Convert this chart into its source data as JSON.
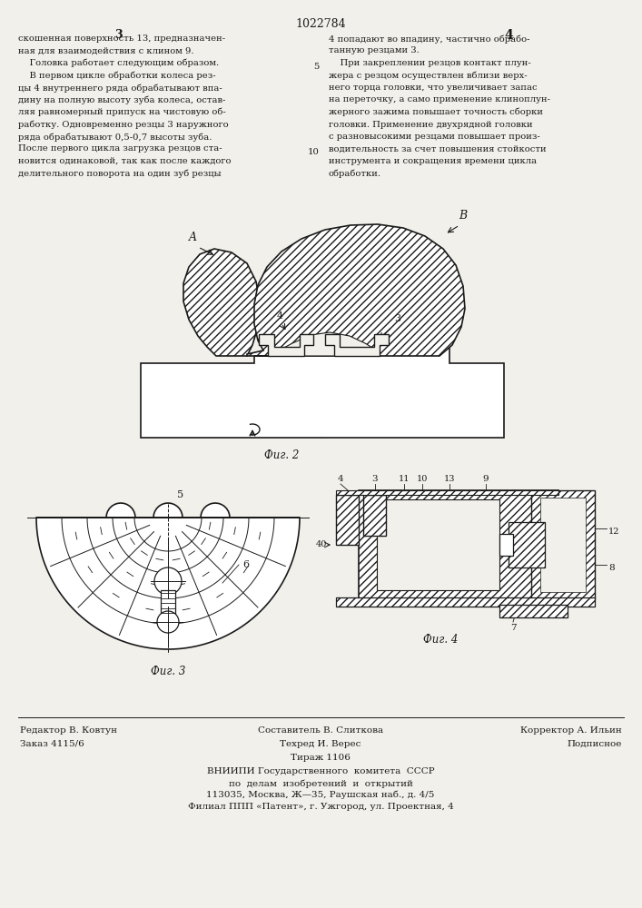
{
  "page_number": "1022784",
  "col_left": "3",
  "col_right": "4",
  "text_left": [
    "скошенная поверхность 13, предназначен-",
    "ная для взаимодействия с клином 9.",
    "    Головка работает следующим образом.",
    "    В первом цикле обработки колеса рез-",
    "цы 4 внутреннего ряда обрабатывают впа-",
    "дину на полную высоту зуба колеса, остав-",
    "ляя равномерный припуск на чистовую об-",
    "работку. Одновременно резцы 3 наружного",
    "ряда обрабатывают 0,5-0,7 высоты зуба.",
    "После первого цикла загрузка резцов ста-",
    "новится одинаковой, так как после каждого",
    "делительного поворота на один зуб резцы"
  ],
  "text_right": [
    "4 попадают во впадину, частично обрабо-",
    "танную резцами 3.",
    "    При закреплении резцов контакт плун-",
    "жера с резцом осуществлен вблизи верх-",
    "него торца головки, что увеличивает запас",
    "на переточку, а само применение клиноплун-",
    "жерного зажима повышает точность сборки",
    "головки. Применение двухрядной головки",
    "с разновысокими резцами повышает произ-",
    "водительность за счет повышения стойкости",
    "инструмента и сокращения времени цикла",
    "обработки."
  ],
  "footer_left1": "Редактор В. Ковтун",
  "footer_left2": "Заказ 4115/6",
  "footer_center1": "Составитель В. Слиткова",
  "footer_center2": "Техред И. Верес",
  "footer_center3": "Тираж 1106",
  "footer_right1": "Корректор А. Ильин",
  "footer_right2": "Подписное",
  "vniipи_line1": "ВНИИПИ Государственного  комитета  СССР",
  "vniipи_line2": "по  делам  изобретений  и  открытий",
  "vniipи_line3": "113035, Москва, Ж—35, Раушская наб., д. 4/5",
  "vniipи_line4": "Филиал ППП «Патент», г. Ужгород, ул. Проектная, 4",
  "bg_color": "#f2f0ea",
  "text_color": "#1a1a1a"
}
